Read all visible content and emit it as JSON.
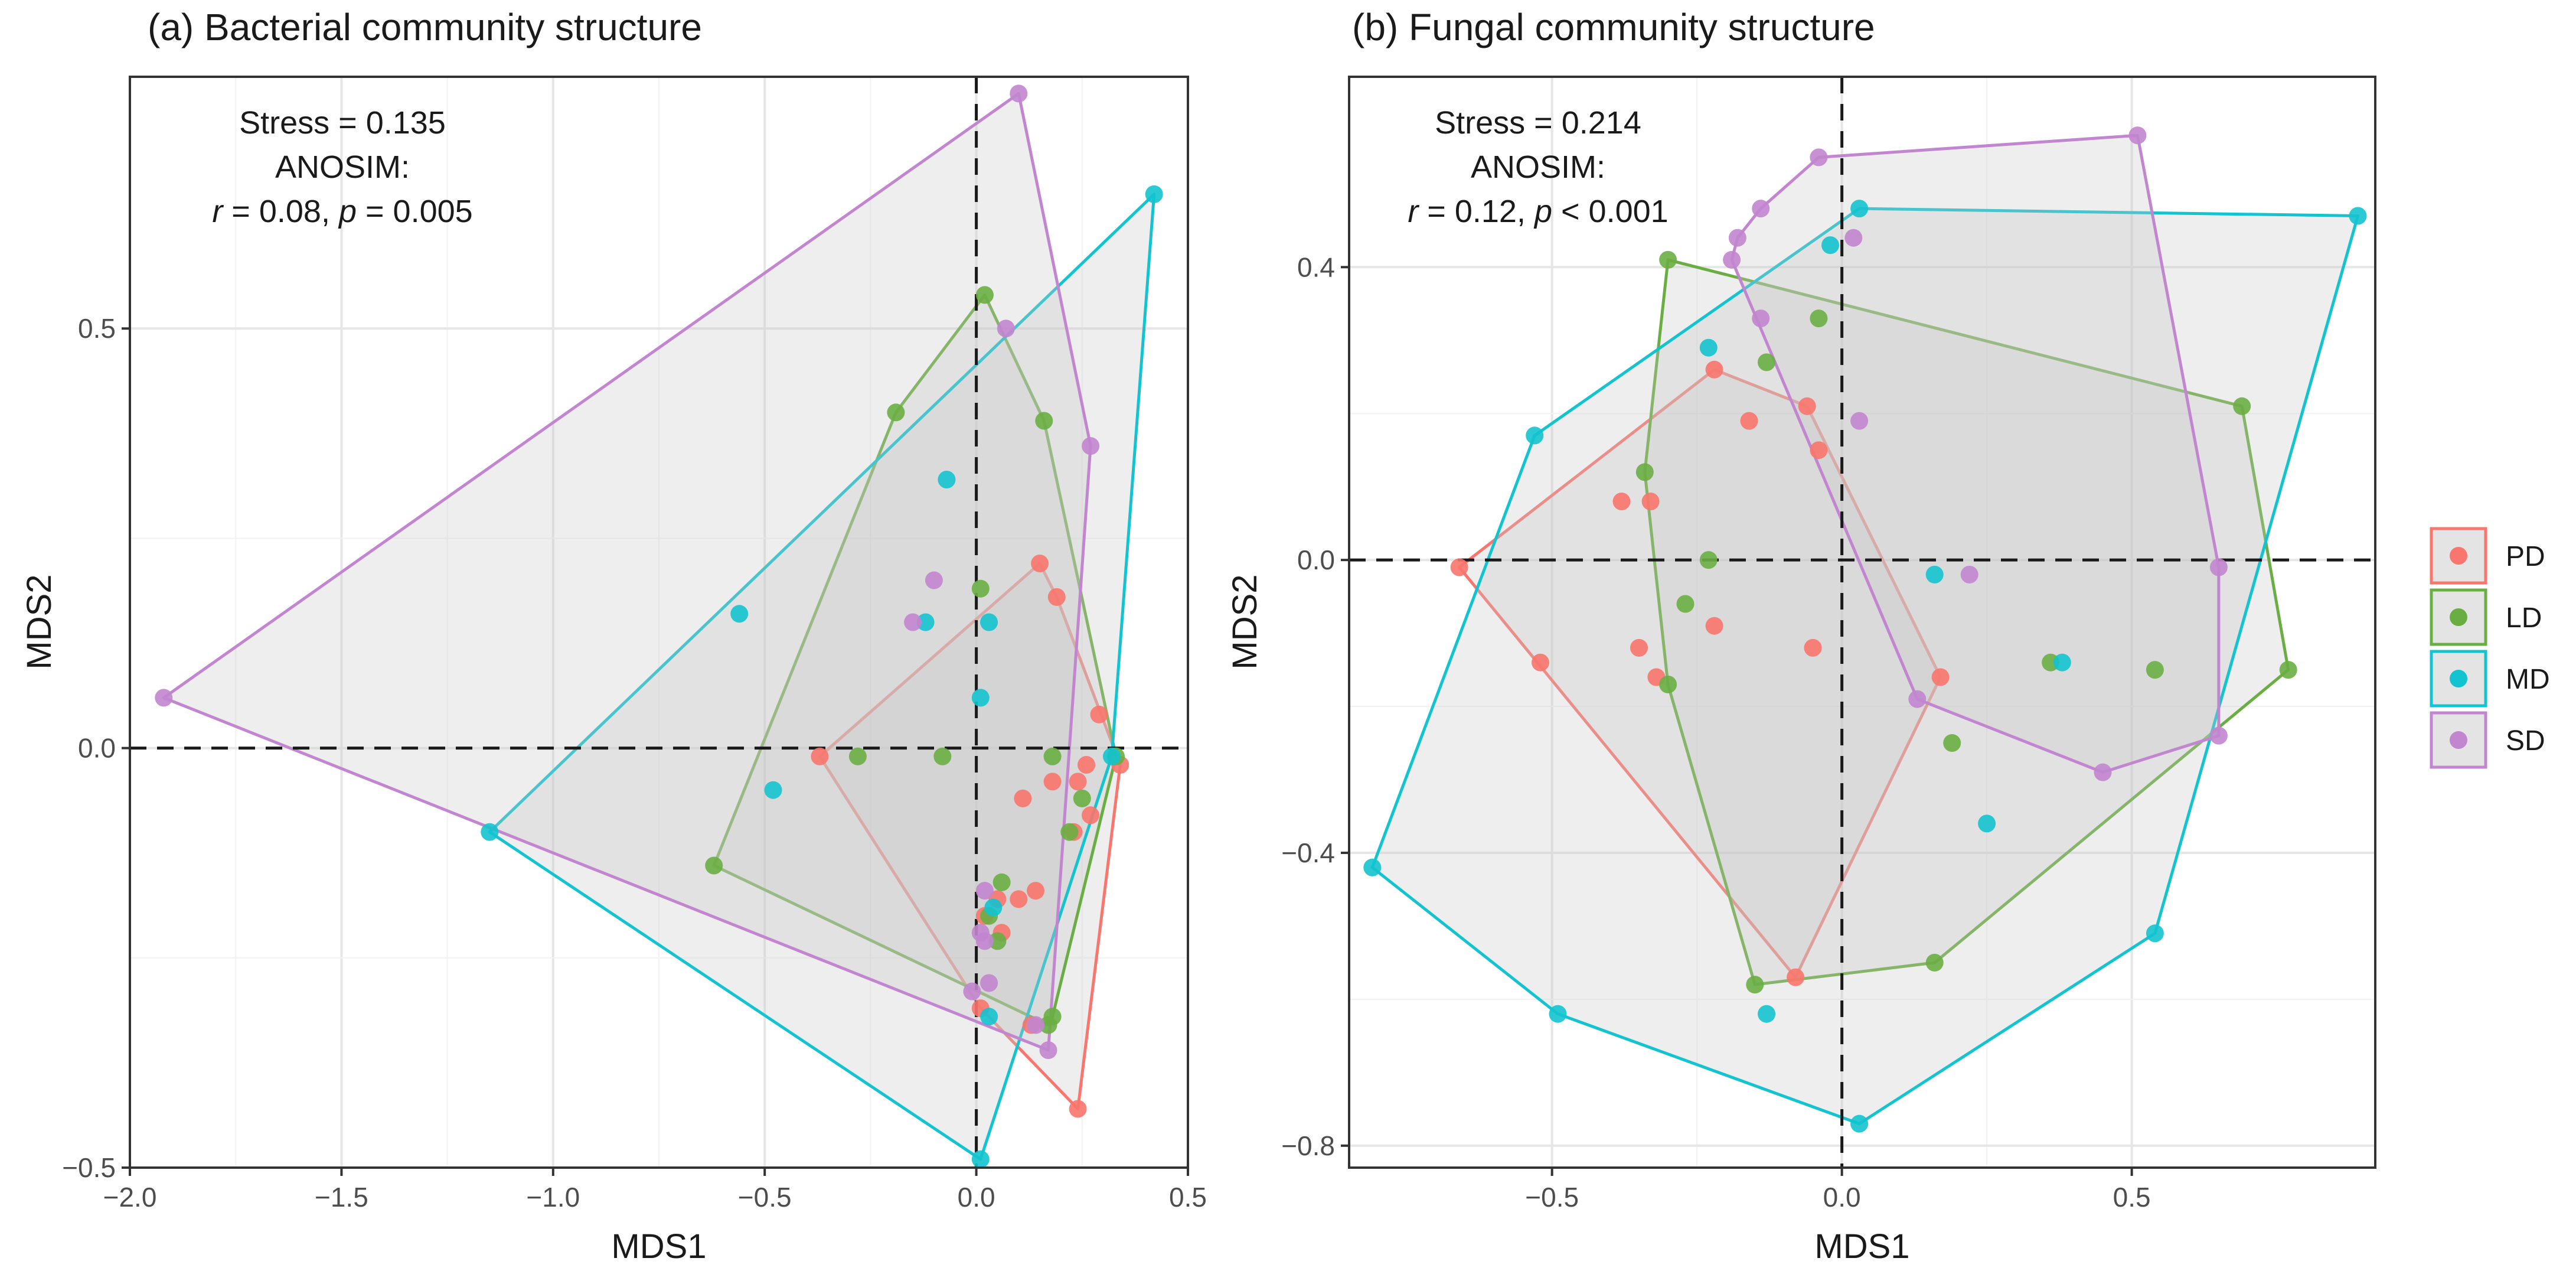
{
  "legend": {
    "groups": [
      "PD",
      "LD",
      "MD",
      "SD"
    ],
    "colors": {
      "PD": "#f8766d",
      "LD": "#6aae43",
      "MD": "#13c3cf",
      "SD": "#c285cf"
    }
  },
  "chart_data": [
    {
      "type": "scatter",
      "title": "(a) Bacterial community structure",
      "xlabel": "MDS1",
      "ylabel": "MDS2",
      "xlim": [
        -2.0,
        0.5
      ],
      "ylim": [
        -0.5,
        0.8
      ],
      "xticks": [
        -2.0,
        -1.5,
        -1.0,
        -0.5,
        0.0,
        0.5
      ],
      "xtick_labels": [
        "−2.0",
        "−1.5",
        "−1.0",
        "−0.5",
        "0.0",
        "0.5"
      ],
      "yticks": [
        -0.5,
        0.0,
        0.5
      ],
      "ytick_labels": [
        "−0.5",
        "0.0",
        "0.5"
      ],
      "annotation": {
        "stress": "Stress = 0.135",
        "test": "ANOSIM:",
        "r_sym": "r",
        "r_val": " = 0.08, ",
        "p_sym": "p",
        "p_val": " = 0.005"
      },
      "series": [
        {
          "name": "PD",
          "points": [
            [
              -0.37,
              -0.01
            ],
            [
              0.15,
              0.22
            ],
            [
              0.19,
              0.18
            ],
            [
              0.29,
              0.04
            ],
            [
              0.34,
              -0.02
            ],
            [
              0.26,
              -0.02
            ],
            [
              0.24,
              -0.04
            ],
            [
              0.18,
              -0.04
            ],
            [
              0.11,
              -0.06
            ],
            [
              0.27,
              -0.08
            ],
            [
              0.23,
              -0.1
            ],
            [
              0.14,
              -0.17
            ],
            [
              0.1,
              -0.18
            ],
            [
              0.05,
              -0.18
            ],
            [
              0.02,
              -0.2
            ],
            [
              0.06,
              -0.22
            ],
            [
              0.24,
              -0.43
            ],
            [
              0.01,
              -0.31
            ],
            [
              0.13,
              -0.33
            ]
          ]
        },
        {
          "name": "LD",
          "points": [
            [
              0.02,
              0.54
            ],
            [
              0.16,
              0.39
            ],
            [
              -0.19,
              0.4
            ],
            [
              -0.28,
              -0.01
            ],
            [
              -0.08,
              -0.01
            ],
            [
              0.01,
              0.19
            ],
            [
              0.18,
              -0.01
            ],
            [
              0.33,
              -0.01
            ],
            [
              0.25,
              -0.06
            ],
            [
              0.22,
              -0.1
            ],
            [
              0.06,
              -0.16
            ],
            [
              0.03,
              -0.2
            ],
            [
              0.05,
              -0.23
            ],
            [
              0.18,
              -0.32
            ],
            [
              0.17,
              -0.33
            ],
            [
              -0.62,
              -0.14
            ]
          ]
        },
        {
          "name": "MD",
          "points": [
            [
              0.42,
              0.66
            ],
            [
              -0.07,
              0.32
            ],
            [
              -0.56,
              0.16
            ],
            [
              -0.12,
              0.15
            ],
            [
              0.03,
              0.15
            ],
            [
              0.01,
              0.06
            ],
            [
              0.32,
              -0.01
            ],
            [
              -0.48,
              -0.05
            ],
            [
              -1.15,
              -0.1
            ],
            [
              0.04,
              -0.19
            ],
            [
              0.03,
              -0.32
            ],
            [
              0.01,
              -0.49
            ]
          ]
        },
        {
          "name": "SD",
          "points": [
            [
              0.1,
              0.78
            ],
            [
              0.07,
              0.5
            ],
            [
              0.27,
              0.36
            ],
            [
              -0.1,
              0.2
            ],
            [
              -0.15,
              0.15
            ],
            [
              -1.92,
              0.06
            ],
            [
              0.02,
              -0.17
            ],
            [
              0.01,
              -0.22
            ],
            [
              0.02,
              -0.23
            ],
            [
              0.03,
              -0.28
            ],
            [
              -0.01,
              -0.29
            ],
            [
              0.14,
              -0.33
            ],
            [
              0.17,
              -0.36
            ]
          ]
        }
      ]
    },
    {
      "type": "scatter",
      "title": "(b) Fungal community structure",
      "xlabel": "MDS1",
      "ylabel": "MDS2",
      "xlim": [
        -0.85,
        0.92
      ],
      "ylim": [
        -0.83,
        0.66
      ],
      "xticks": [
        -0.5,
        0.0,
        0.5
      ],
      "xtick_labels": [
        "−0.5",
        "0.0",
        "0.5"
      ],
      "yticks": [
        -0.8,
        -0.4,
        0.0,
        0.4
      ],
      "ytick_labels": [
        "−0.8",
        "−0.4",
        "0.0",
        "0.4"
      ],
      "annotation": {
        "stress": "Stress = 0.214",
        "test": "ANOSIM:",
        "r_sym": "r",
        "r_val": " = 0.12, ",
        "p_sym": "p",
        "p_val": " < 0.001"
      },
      "series": [
        {
          "name": "PD",
          "points": [
            [
              -0.22,
              0.26
            ],
            [
              -0.06,
              0.21
            ],
            [
              -0.16,
              0.19
            ],
            [
              -0.04,
              0.15
            ],
            [
              -0.38,
              0.08
            ],
            [
              -0.33,
              0.08
            ],
            [
              -0.66,
              -0.01
            ],
            [
              -0.35,
              -0.12
            ],
            [
              -0.22,
              -0.09
            ],
            [
              -0.05,
              -0.12
            ],
            [
              -0.52,
              -0.14
            ],
            [
              -0.32,
              -0.16
            ],
            [
              0.17,
              -0.16
            ],
            [
              -0.08,
              -0.57
            ]
          ]
        },
        {
          "name": "LD",
          "points": [
            [
              -0.3,
              0.41
            ],
            [
              -0.04,
              0.33
            ],
            [
              -0.13,
              0.27
            ],
            [
              0.69,
              0.21
            ],
            [
              -0.34,
              0.12
            ],
            [
              -0.23,
              0.0
            ],
            [
              -0.27,
              -0.06
            ],
            [
              -0.3,
              -0.17
            ],
            [
              0.36,
              -0.14
            ],
            [
              0.54,
              -0.15
            ],
            [
              0.77,
              -0.15
            ],
            [
              0.19,
              -0.25
            ],
            [
              0.16,
              -0.55
            ],
            [
              -0.15,
              -0.58
            ]
          ]
        },
        {
          "name": "MD",
          "points": [
            [
              0.03,
              0.48
            ],
            [
              0.89,
              0.47
            ],
            [
              -0.02,
              0.43
            ],
            [
              -0.23,
              0.29
            ],
            [
              -0.53,
              0.17
            ],
            [
              0.16,
              -0.02
            ],
            [
              0.38,
              -0.14
            ],
            [
              0.25,
              -0.36
            ],
            [
              0.54,
              -0.51
            ],
            [
              -0.13,
              -0.62
            ],
            [
              -0.49,
              -0.62
            ],
            [
              -0.81,
              -0.42
            ],
            [
              0.03,
              -0.77
            ]
          ]
        },
        {
          "name": "SD",
          "points": [
            [
              -0.04,
              0.55
            ],
            [
              0.51,
              0.58
            ],
            [
              -0.14,
              0.48
            ],
            [
              -0.18,
              0.44
            ],
            [
              0.02,
              0.44
            ],
            [
              -0.19,
              0.41
            ],
            [
              -0.14,
              0.33
            ],
            [
              0.03,
              0.19
            ],
            [
              0.65,
              -0.01
            ],
            [
              0.22,
              -0.02
            ],
            [
              0.13,
              -0.19
            ],
            [
              0.65,
              -0.24
            ],
            [
              0.45,
              -0.29
            ]
          ]
        }
      ]
    }
  ]
}
